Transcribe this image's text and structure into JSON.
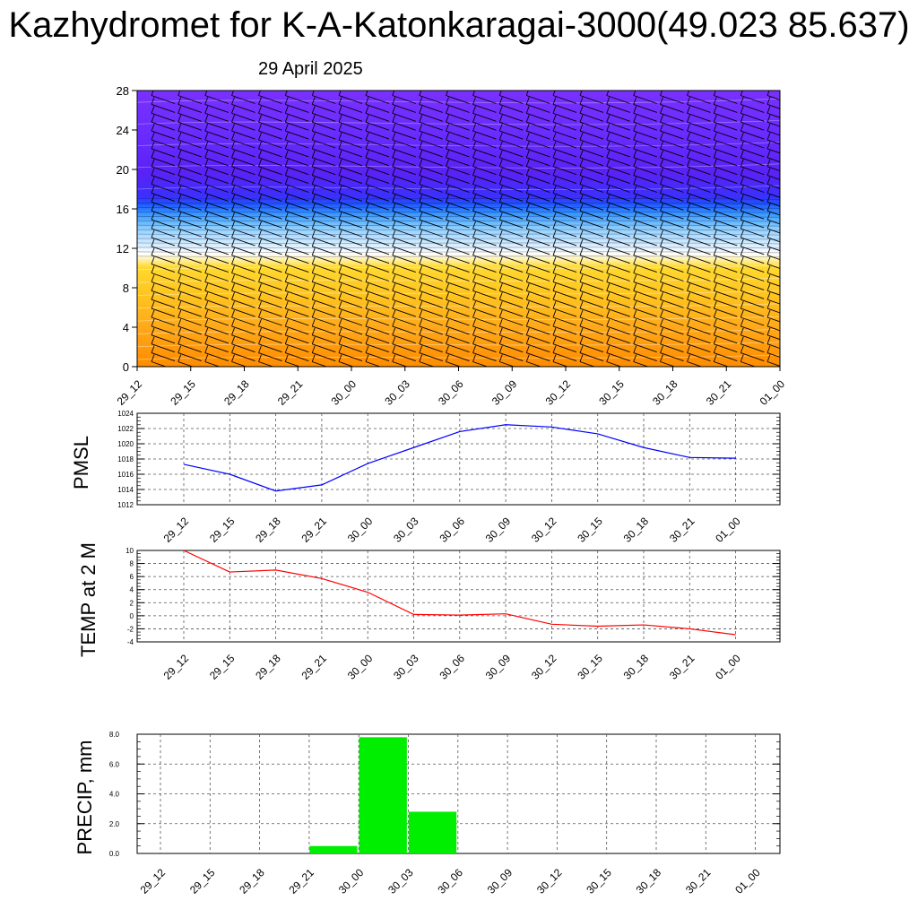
{
  "title": "Kazhydromet for K-A-Katonkaragai-3000(49.023 85.637)",
  "subtitle": "29 April 2025",
  "time_labels": [
    "29_12",
    "29_15",
    "29_18",
    "29_21",
    "30_00",
    "30_03",
    "30_06",
    "30_09",
    "30_12",
    "30_15",
    "30_18",
    "30_21",
    "01_00"
  ],
  "colors": {
    "pmsl_line": "#0000ff",
    "temp_line": "#ff0000",
    "precip_bar": "#00ee00",
    "section_warm": "#ff9900",
    "section_cold": "#6a2cff"
  },
  "chart_data": [
    {
      "type": "heatmap",
      "name": "cross-section",
      "x": [
        "29_12",
        "29_15",
        "29_18",
        "29_21",
        "30_00",
        "30_03",
        "30_06",
        "30_09",
        "30_12",
        "30_15",
        "30_18",
        "30_21",
        "01_00"
      ],
      "ylim": [
        0,
        28
      ],
      "yticks": [
        0,
        4,
        8,
        12,
        16,
        20,
        24,
        28
      ],
      "grid": false,
      "note_levels": "warm (orange/yellow) below ~11, white ~11-12, light-to-dark blue 12-17, purple above 17"
    },
    {
      "type": "line",
      "name": "pmsl",
      "ylabel": "PMSL",
      "x": [
        "29_12",
        "29_15",
        "29_18",
        "29_21",
        "30_00",
        "30_03",
        "30_06",
        "30_09",
        "30_12",
        "30_15",
        "30_18",
        "30_21",
        "01_00"
      ],
      "values": [
        1017.3,
        1016.0,
        1013.8,
        1014.6,
        1017.4,
        1019.5,
        1021.6,
        1022.5,
        1022.2,
        1021.3,
        1019.5,
        1018.2,
        1018.1
      ],
      "ylim": [
        1012,
        1024
      ],
      "yticks": [
        1012,
        1014,
        1016,
        1018,
        1020,
        1022,
        1024
      ],
      "grid": true
    },
    {
      "type": "line",
      "name": "temp",
      "ylabel": "TEMP at 2 M",
      "x": [
        "29_12",
        "29_15",
        "29_18",
        "29_21",
        "30_00",
        "30_03",
        "30_06",
        "30_09",
        "30_12",
        "30_15",
        "30_18",
        "30_21",
        "01_00"
      ],
      "values": [
        10.0,
        6.7,
        7.0,
        5.7,
        3.6,
        0.2,
        0.1,
        0.3,
        -1.3,
        -1.6,
        -1.4,
        -2.0,
        -2.9
      ],
      "ylim": [
        -4,
        10
      ],
      "yticks": [
        -4,
        -2,
        0,
        2,
        4,
        6,
        8,
        10
      ],
      "grid": true
    },
    {
      "type": "bar",
      "name": "precip",
      "ylabel": "PRECIP, mm",
      "categories": [
        "29_12",
        "29_15",
        "29_18",
        "29_21",
        "30_00",
        "30_03",
        "30_06",
        "30_09",
        "30_12",
        "30_15",
        "30_18",
        "30_21",
        "01_00"
      ],
      "values": [
        0,
        0,
        0,
        0.5,
        7.8,
        2.8,
        0,
        0,
        0,
        0,
        0,
        0,
        0
      ],
      "ylim": [
        0,
        8
      ],
      "yticks": [
        "0.0",
        "2.0",
        "4.0",
        "6.0",
        "8.0"
      ],
      "grid": true
    }
  ]
}
